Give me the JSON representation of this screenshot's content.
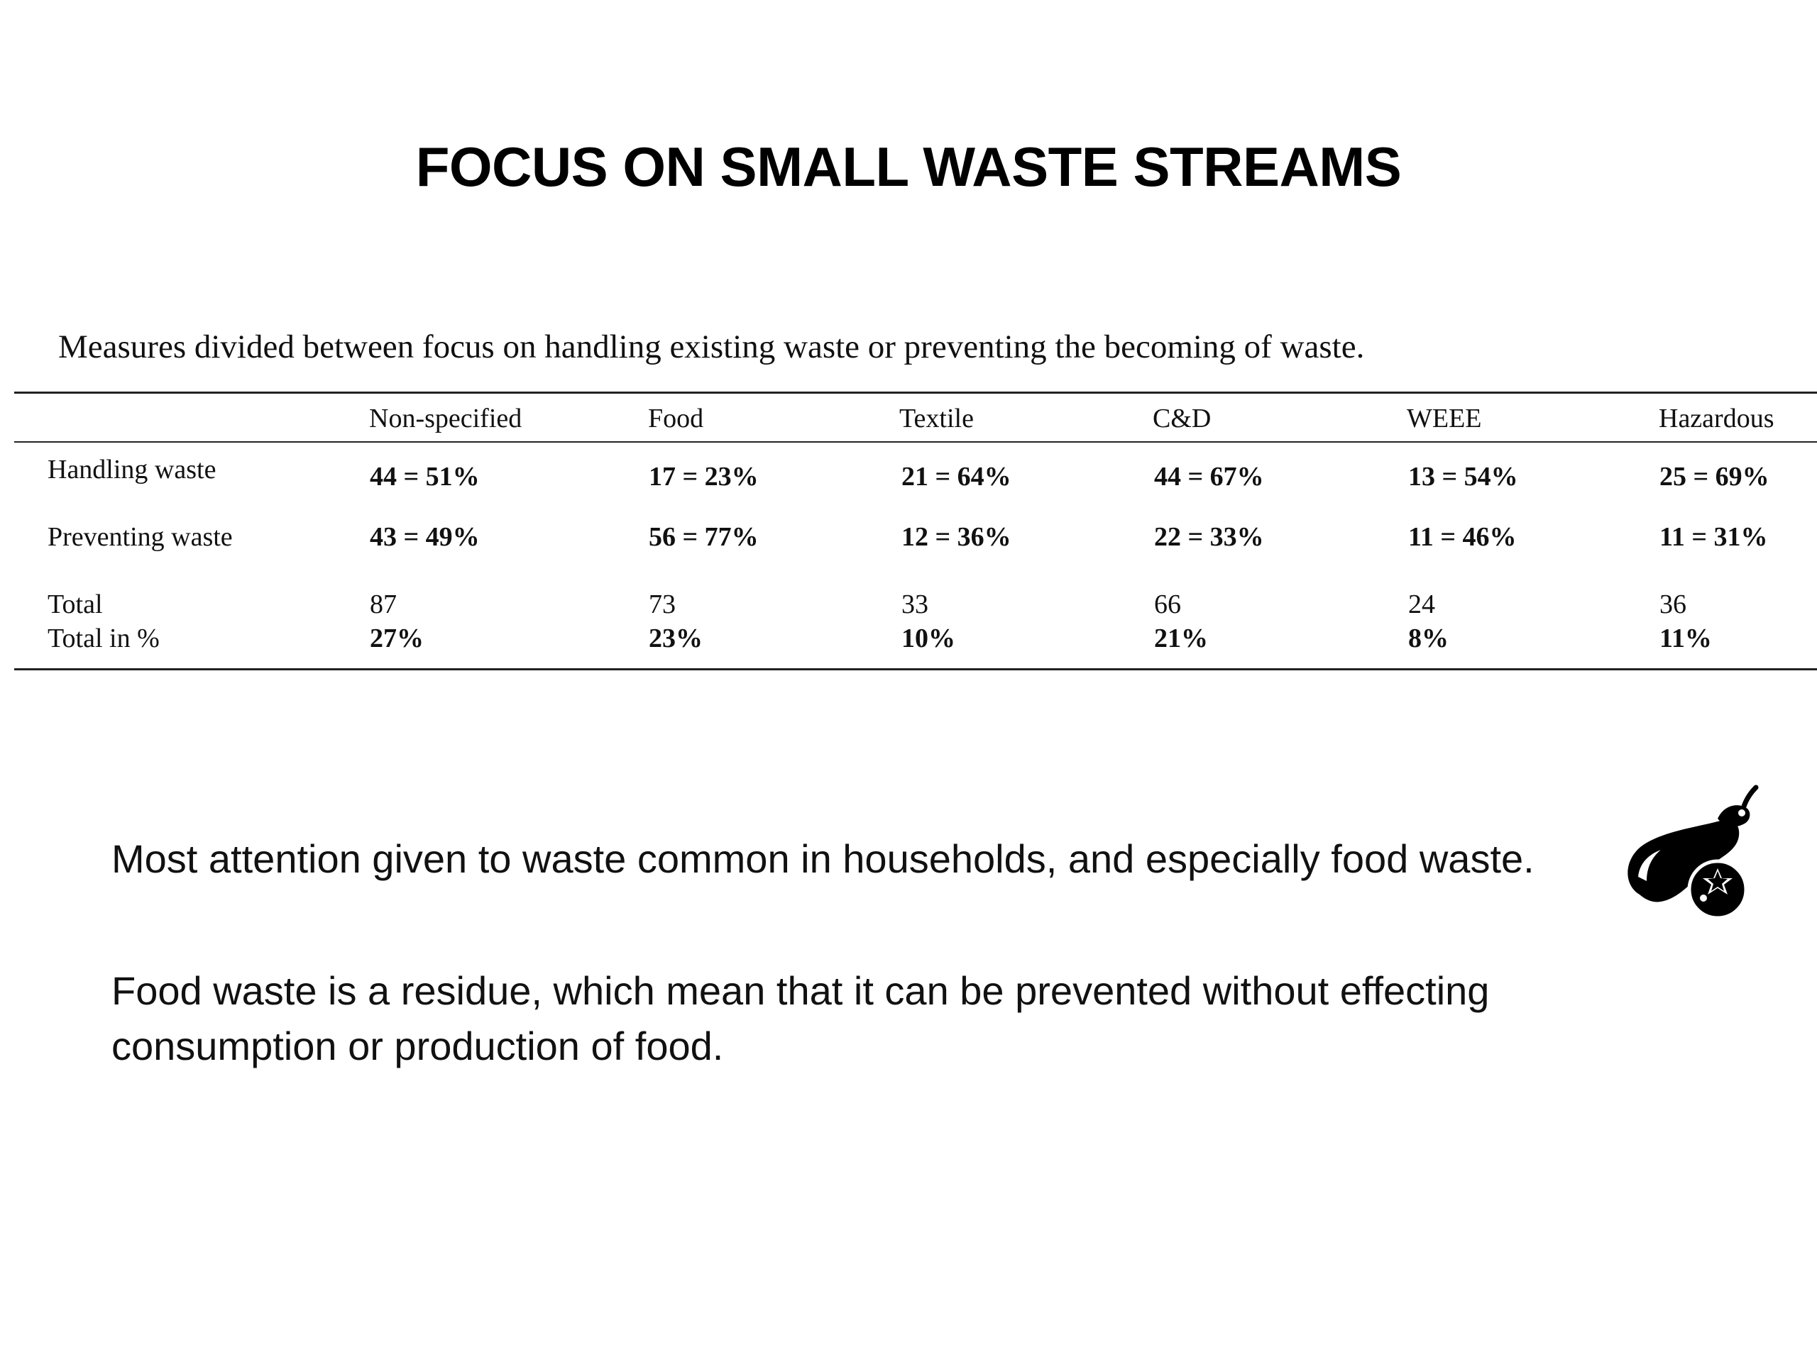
{
  "title": "FOCUS ON SMALL WASTE STREAMS",
  "table": {
    "caption": "Measures divided between focus on handling existing waste or preventing the becoming of waste.",
    "columns": [
      "Non-specified",
      "Food",
      "Textile",
      "C&D",
      "WEEE",
      "Hazardous"
    ],
    "rows": [
      {
        "label": "Handling waste",
        "values": [
          "44 = 51%",
          "17 = 23%",
          "21 = 64%",
          "44 = 67%",
          "13 = 54%",
          "25 = 69%"
        ],
        "bold": true
      },
      {
        "label": "Preventing waste",
        "values": [
          "43 = 49%",
          "56 = 77%",
          "12 = 36%",
          "22 = 33%",
          "11 = 46%",
          "11 = 31%"
        ],
        "bold": true
      },
      {
        "label": "Total",
        "values": [
          "87",
          "73",
          "33",
          "66",
          "24",
          "36"
        ],
        "bold": false
      },
      {
        "label": "Total in %",
        "values": [
          "27%",
          "23%",
          "10%",
          "21%",
          "8%",
          "11%"
        ],
        "bold": true
      }
    ]
  },
  "paragraphs": [
    "Most attention given to waste common in households, and especially food waste.",
    "Food waste is a residue, which mean that it can be prevented without effecting consumption or production of food."
  ],
  "icon": "food-eggplant-tomato-icon"
}
